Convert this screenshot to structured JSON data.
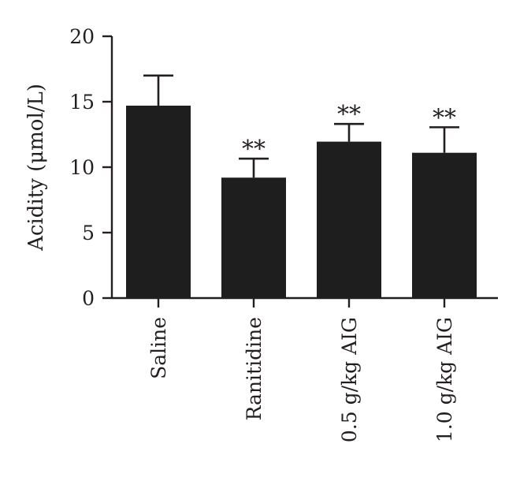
{
  "chart_data": {
    "type": "bar",
    "title": "",
    "xlabel": "",
    "ylabel": "Acidity (μmol/L)",
    "ylim": [
      0,
      20
    ],
    "yticks": [
      0,
      5,
      10,
      15,
      20
    ],
    "categories": [
      "Saline",
      "Ranitidine",
      "0.5 g/kg AIG",
      "1.0 g/kg AIG"
    ],
    "values": [
      14.7,
      9.2,
      11.95,
      11.1
    ],
    "errors": [
      2.3,
      1.45,
      1.35,
      1.95
    ],
    "significance": [
      "",
      "**",
      "**",
      "**"
    ],
    "bar_color": "#1e1e1e",
    "grid": false,
    "legend": "none"
  }
}
